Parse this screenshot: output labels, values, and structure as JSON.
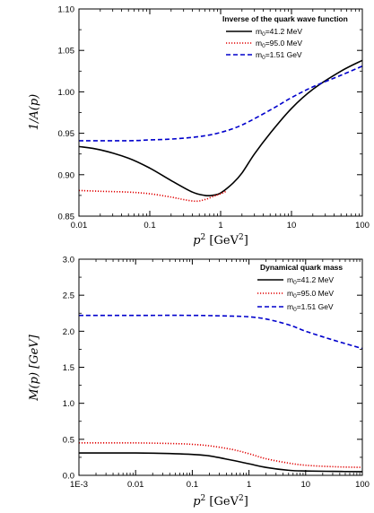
{
  "chart_data": [
    {
      "type": "line",
      "title": "Inverse of the quark wave function",
      "ylabel": "1/A(p)",
      "xlabel": "p^2 [GeV^2]",
      "xscale": "log",
      "xlim": [
        0.01,
        100
      ],
      "ylim": [
        0.85,
        1.1
      ],
      "xticks": [
        0.01,
        0.1,
        1,
        10,
        100
      ],
      "xtick_labels": [
        "0.01",
        "0.1",
        "1",
        "10",
        "100"
      ],
      "yticks": [
        0.85,
        0.9,
        0.95,
        1.0,
        1.05,
        1.1
      ],
      "ytick_labels": [
        "0.85",
        "0.90",
        "0.95",
        "1.00",
        "1.05",
        "1.10"
      ],
      "legend_position": "top-right",
      "series": [
        {
          "name": "m0=41.2 MeV",
          "color": "#000000",
          "style": "solid",
          "x": [
            0.01,
            0.02,
            0.05,
            0.1,
            0.2,
            0.4,
            0.6,
            0.75,
            1,
            1.5,
            2,
            3,
            5,
            10,
            20,
            50,
            100
          ],
          "y": [
            0.934,
            0.93,
            0.92,
            0.908,
            0.893,
            0.879,
            0.875,
            0.875,
            0.878,
            0.89,
            0.902,
            0.925,
            0.95,
            0.98,
            1.003,
            1.025,
            1.038
          ]
        },
        {
          "name": "m0=95.0 MeV",
          "color": "#e00000",
          "style": "dotted",
          "x": [
            0.01,
            0.02,
            0.05,
            0.1,
            0.2,
            0.3,
            0.45,
            0.6,
            0.8,
            1,
            1.2
          ],
          "y": [
            0.881,
            0.88,
            0.879,
            0.877,
            0.873,
            0.87,
            0.868,
            0.87,
            0.874,
            0.877,
            0.88
          ]
        },
        {
          "name": "m0=1.51 GeV",
          "color": "#0000cc",
          "style": "dashed",
          "x": [
            0.01,
            0.05,
            0.1,
            0.2,
            0.5,
            1,
            2,
            5,
            10,
            20,
            50,
            100
          ],
          "y": [
            0.941,
            0.941,
            0.942,
            0.943,
            0.946,
            0.951,
            0.96,
            0.978,
            0.993,
            1.006,
            1.02,
            1.031
          ]
        }
      ]
    },
    {
      "type": "line",
      "title": "Dynamical quark mass",
      "ylabel": "M(p) [GeV]",
      "xlabel": "p^2 [GeV^2]",
      "xscale": "log",
      "xlim": [
        0.001,
        100
      ],
      "ylim": [
        0.0,
        3.0
      ],
      "xticks": [
        0.001,
        0.01,
        0.1,
        1,
        10,
        100
      ],
      "xtick_labels": [
        "1E-3",
        "0.01",
        "0.1",
        "1",
        "10",
        "100"
      ],
      "yticks": [
        0.0,
        0.5,
        1.0,
        1.5,
        2.0,
        2.5,
        3.0
      ],
      "ytick_labels": [
        "0.0",
        "0.5",
        "1.0",
        "1.5",
        "2.0",
        "2.5",
        "3.0"
      ],
      "legend_position": "top-right",
      "series": [
        {
          "name": "m0=41.2 MeV",
          "color": "#000000",
          "style": "solid",
          "x": [
            0.001,
            0.01,
            0.05,
            0.1,
            0.2,
            0.5,
            1,
            2,
            5,
            10,
            30,
            100
          ],
          "y": [
            0.31,
            0.31,
            0.3,
            0.29,
            0.27,
            0.21,
            0.16,
            0.11,
            0.07,
            0.06,
            0.055,
            0.05
          ]
        },
        {
          "name": "m0=95.0 MeV",
          "color": "#e00000",
          "style": "dotted",
          "x": [
            0.001,
            0.01,
            0.05,
            0.1,
            0.2,
            0.5,
            1,
            2,
            5,
            10,
            30,
            100
          ],
          "y": [
            0.45,
            0.45,
            0.44,
            0.43,
            0.41,
            0.36,
            0.3,
            0.23,
            0.17,
            0.14,
            0.12,
            0.11
          ]
        },
        {
          "name": "m0=1.51 GeV",
          "color": "#0000cc",
          "style": "dashed",
          "x": [
            0.001,
            0.01,
            0.1,
            0.5,
            1,
            2,
            5,
            10,
            30,
            100
          ],
          "y": [
            2.22,
            2.22,
            2.22,
            2.21,
            2.2,
            2.17,
            2.09,
            2.0,
            1.88,
            1.76
          ]
        }
      ]
    }
  ],
  "panel1": {
    "title": "Inverse of the quark wave function",
    "ylabel": "1/A(p)",
    "xlabel_main": "p",
    "xlabel_sup": "2",
    "xlabel_unit": " [GeV",
    "xlabel_unit_sup": "2",
    "xlabel_close": "]",
    "legend": [
      {
        "label": "m",
        "sub": "0",
        "rest": "=41.2 MeV"
      },
      {
        "label": "m",
        "sub": "0",
        "rest": "=95.0 MeV"
      },
      {
        "label": "m",
        "sub": "0",
        "rest": "=1.51 GeV"
      }
    ]
  },
  "panel2": {
    "title": "Dynamical quark mass",
    "ylabel": "M(p) [GeV]",
    "xlabel_main": "p",
    "xlabel_sup": "2",
    "xlabel_unit": " [GeV",
    "xlabel_unit_sup": "2",
    "xlabel_close": "]",
    "legend": [
      {
        "label": "m",
        "sub": "0",
        "rest": "=41.2 MeV"
      },
      {
        "label": "m",
        "sub": "0",
        "rest": "=95.0 MeV"
      },
      {
        "label": "m",
        "sub": "0",
        "rest": "=1.51 GeV"
      }
    ]
  }
}
